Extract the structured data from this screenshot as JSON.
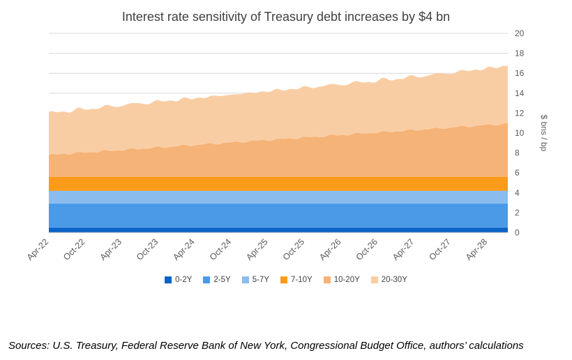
{
  "title": "Interest rate sensitivity of Treasury debt increases by $4 bn",
  "source_note": "Sources: U.S. Treasury, Federal Reserve Bank of New York, Congressional Budget Office, authors’ calculations",
  "y_axis_label": "$ bns / bp",
  "colors": {
    "grid": "#d9d9d9",
    "axis": "#bfbfbf",
    "tick_text": "#595959",
    "title_text": "#404040"
  },
  "chart_data": {
    "type": "area",
    "stacked": true,
    "title": "Interest rate sensitivity of Treasury debt increases by $4 bn",
    "xlabel": "",
    "ylabel": "$ bns / bp",
    "ylim": [
      0,
      20
    ],
    "ytick_step": 2,
    "grid": true,
    "legend_position": "bottom",
    "categories": [
      "Apr-22",
      "Oct-22",
      "Apr-23",
      "Oct-23",
      "Apr-24",
      "Oct-24",
      "Apr-25",
      "Oct-25",
      "Apr-26",
      "Oct-26",
      "Apr-27",
      "Oct-27",
      "Apr-28"
    ],
    "series": [
      {
        "name": "0-2Y",
        "color": "#0b64c5",
        "values": [
          0.5,
          0.5,
          0.5,
          0.5,
          0.5,
          0.5,
          0.5,
          0.5,
          0.5,
          0.5,
          0.5,
          0.5,
          0.5
        ]
      },
      {
        "name": "2-5Y",
        "color": "#4a9ae8",
        "values": [
          2.4,
          2.4,
          2.4,
          2.4,
          2.4,
          2.4,
          2.4,
          2.4,
          2.4,
          2.4,
          2.4,
          2.4,
          2.4
        ]
      },
      {
        "name": "5-7Y",
        "color": "#8abdee",
        "values": [
          1.3,
          1.3,
          1.3,
          1.3,
          1.3,
          1.3,
          1.3,
          1.3,
          1.3,
          1.3,
          1.3,
          1.3,
          1.3
        ]
      },
      {
        "name": "7-10Y",
        "color": "#fb9b19",
        "values": [
          1.4,
          1.4,
          1.4,
          1.4,
          1.4,
          1.4,
          1.4,
          1.4,
          1.4,
          1.4,
          1.4,
          1.4,
          1.4
        ]
      },
      {
        "name": "10-20Y",
        "color": "#f5b377",
        "values": [
          2.2,
          2.45,
          2.7,
          2.95,
          3.2,
          3.45,
          3.7,
          3.95,
          4.2,
          4.45,
          4.7,
          4.95,
          5.2
        ]
      },
      {
        "name": "20-30Y",
        "color": "#f9cda4",
        "values": [
          4.2,
          4.35,
          4.5,
          4.6,
          4.7,
          4.8,
          4.9,
          5.0,
          5.1,
          5.2,
          5.35,
          5.5,
          5.7
        ]
      }
    ],
    "totals_note": {
      "start_total": 12.0,
      "end_total": 16.5
    }
  }
}
